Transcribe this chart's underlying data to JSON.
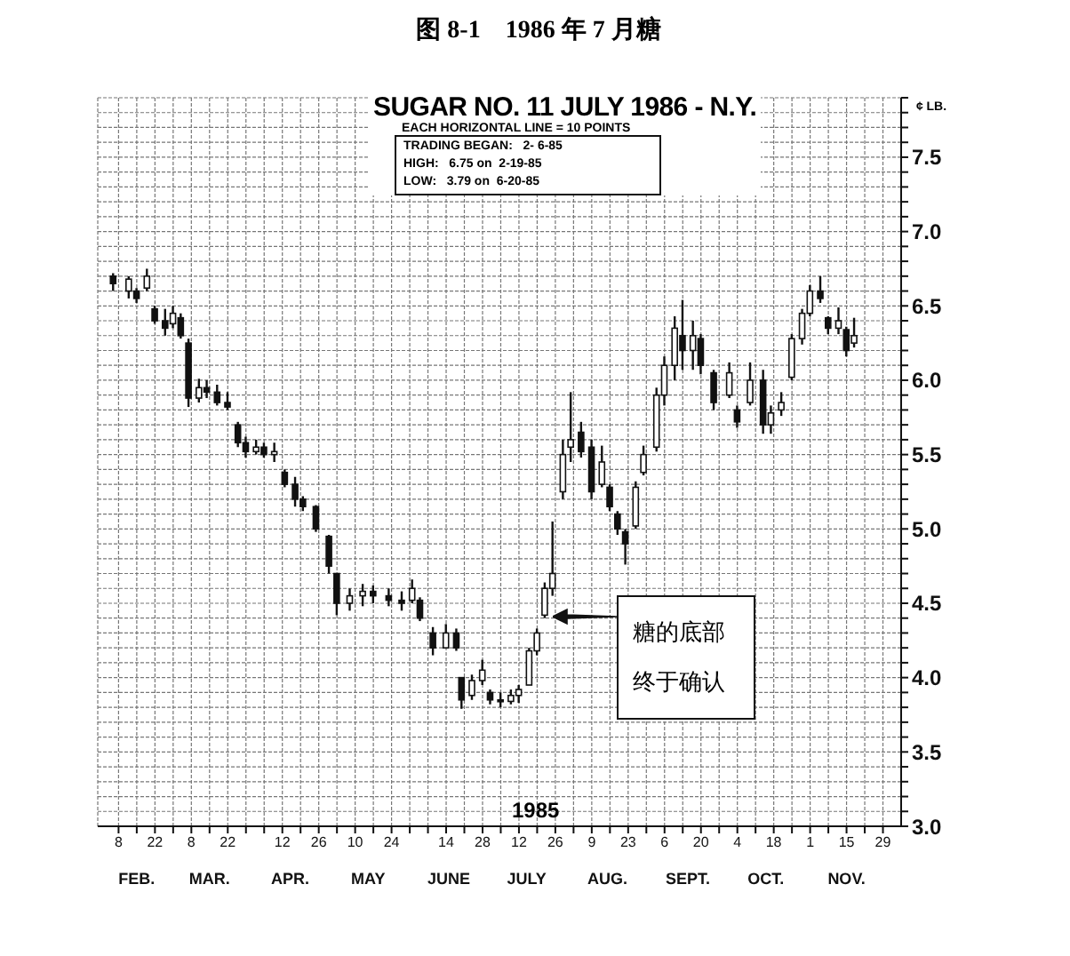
{
  "chart_data": {
    "type": "candlestick",
    "title": "图 8-1　1986 年 7 月糖",
    "subtitle": "SUGAR NO. 11 JULY 1986 - N.Y.",
    "ylabel": "¢ LB.",
    "annotations": [
      "EACH HORIZONTAL LINE = 10 POINTS",
      "TRADING BEGAN:   2- 6-85",
      "HIGH:   6.75 on  2-19-85",
      "LOW:   3.79 on  6-20-85",
      "1985",
      "糖的底部终于确认"
    ],
    "x": [
      "1985-02-06",
      "1985-02-12",
      "1985-02-15",
      "1985-02-19",
      "1985-02-22",
      "1985-02-26",
      "1985-03-01",
      "1985-03-04",
      "1985-03-07",
      "1985-03-11",
      "1985-03-14",
      "1985-03-18",
      "1985-03-22",
      "1985-03-26",
      "1985-03-29",
      "1985-04-02",
      "1985-04-05",
      "1985-04-09",
      "1985-04-13",
      "1985-04-17",
      "1985-04-20",
      "1985-04-25",
      "1985-04-30",
      "1985-05-03",
      "1985-05-08",
      "1985-05-13",
      "1985-05-17",
      "1985-05-23",
      "1985-05-28",
      "1985-06-01",
      "1985-06-04",
      "1985-06-09",
      "1985-06-14",
      "1985-06-18",
      "1985-06-20",
      "1985-06-24",
      "1985-06-28",
      "1985-07-01",
      "1985-07-05",
      "1985-07-09",
      "1985-07-12",
      "1985-07-16",
      "1985-07-19",
      "1985-07-22",
      "1985-07-25",
      "1985-07-29",
      "1985-08-01",
      "1985-08-05",
      "1985-08-09",
      "1985-08-13",
      "1985-08-16",
      "1985-08-19",
      "1985-08-22",
      "1985-08-26",
      "1985-08-29",
      "1985-09-03",
      "1985-09-06",
      "1985-09-10",
      "1985-09-13",
      "1985-09-17",
      "1985-09-20",
      "1985-09-25",
      "1985-10-01",
      "1985-10-04",
      "1985-10-09",
      "1985-10-14",
      "1985-10-17",
      "1985-10-21",
      "1985-10-25",
      "1985-10-29",
      "1985-11-01",
      "1985-11-05",
      "1985-11-08",
      "1985-11-12",
      "1985-11-15",
      "1985-11-18"
    ],
    "ohlc": [
      [
        6.7,
        6.72,
        6.6,
        6.65
      ],
      [
        6.6,
        6.7,
        6.55,
        6.68
      ],
      [
        6.6,
        6.62,
        6.52,
        6.55
      ],
      [
        6.62,
        6.75,
        6.6,
        6.7
      ],
      [
        6.48,
        6.5,
        6.38,
        6.4
      ],
      [
        6.4,
        6.48,
        6.3,
        6.35
      ],
      [
        6.38,
        6.5,
        6.35,
        6.45
      ],
      [
        6.42,
        6.45,
        6.28,
        6.3
      ],
      [
        6.25,
        6.28,
        5.82,
        5.88
      ],
      [
        5.88,
        6.01,
        5.85,
        5.95
      ],
      [
        5.95,
        6.0,
        5.88,
        5.92
      ],
      [
        5.92,
        5.97,
        5.83,
        5.85
      ],
      [
        5.85,
        5.92,
        5.8,
        5.82
      ],
      [
        5.7,
        5.72,
        5.55,
        5.58
      ],
      [
        5.58,
        5.62,
        5.48,
        5.52
      ],
      [
        5.52,
        5.6,
        5.5,
        5.55
      ],
      [
        5.55,
        5.58,
        5.48,
        5.5
      ],
      [
        5.5,
        5.58,
        5.45,
        5.52
      ],
      [
        5.38,
        5.4,
        5.28,
        5.3
      ],
      [
        5.3,
        5.35,
        5.15,
        5.2
      ],
      [
        5.2,
        5.22,
        5.12,
        5.15
      ],
      [
        5.15,
        5.16,
        4.98,
        5.0
      ],
      [
        4.95,
        4.96,
        4.7,
        4.75
      ],
      [
        4.7,
        4.7,
        4.42,
        4.5
      ],
      [
        4.5,
        4.6,
        4.45,
        4.55
      ],
      [
        4.55,
        4.63,
        4.48,
        4.58
      ],
      [
        4.58,
        4.62,
        4.5,
        4.55
      ],
      [
        4.55,
        4.6,
        4.48,
        4.52
      ],
      [
        4.52,
        4.58,
        4.45,
        4.5
      ],
      [
        4.52,
        4.66,
        4.5,
        4.6
      ],
      [
        4.52,
        4.54,
        4.38,
        4.4
      ],
      [
        4.3,
        4.34,
        4.15,
        4.2
      ],
      [
        4.2,
        4.36,
        4.2,
        4.3
      ],
      [
        4.3,
        4.33,
        4.18,
        4.2
      ],
      [
        4.0,
        4.0,
        3.79,
        3.85
      ],
      [
        3.88,
        4.02,
        3.85,
        3.98
      ],
      [
        3.98,
        4.12,
        3.95,
        4.05
      ],
      [
        3.9,
        3.92,
        3.82,
        3.85
      ],
      [
        3.85,
        3.9,
        3.8,
        3.84
      ],
      [
        3.84,
        3.92,
        3.82,
        3.88
      ],
      [
        3.88,
        3.95,
        3.83,
        3.92
      ],
      [
        3.95,
        4.2,
        3.95,
        4.18
      ],
      [
        4.18,
        4.33,
        4.15,
        4.3
      ],
      [
        4.42,
        4.64,
        4.4,
        4.6
      ],
      [
        4.6,
        5.05,
        4.55,
        4.7
      ],
      [
        5.25,
        5.6,
        5.2,
        5.5
      ],
      [
        5.55,
        5.92,
        5.45,
        5.6
      ],
      [
        5.65,
        5.72,
        5.48,
        5.52
      ],
      [
        5.55,
        5.6,
        5.2,
        5.25
      ],
      [
        5.3,
        5.56,
        5.28,
        5.45
      ],
      [
        5.28,
        5.3,
        5.12,
        5.15
      ],
      [
        5.1,
        5.12,
        4.96,
        5.0
      ],
      [
        4.98,
        5.0,
        4.76,
        4.9
      ],
      [
        5.02,
        5.32,
        5.0,
        5.28
      ],
      [
        5.38,
        5.56,
        5.36,
        5.5
      ],
      [
        5.55,
        5.95,
        5.52,
        5.9
      ],
      [
        5.9,
        6.16,
        5.83,
        6.1
      ],
      [
        6.1,
        6.43,
        6.0,
        6.35
      ],
      [
        6.3,
        6.54,
        6.07,
        6.2
      ],
      [
        6.2,
        6.4,
        6.07,
        6.3
      ],
      [
        6.28,
        6.31,
        6.04,
        6.1
      ],
      [
        6.05,
        6.07,
        5.8,
        5.85
      ],
      [
        5.9,
        6.12,
        5.88,
        6.05
      ],
      [
        5.8,
        5.83,
        5.68,
        5.72
      ],
      [
        5.85,
        6.12,
        5.83,
        6.0
      ],
      [
        6.0,
        6.07,
        5.64,
        5.7
      ],
      [
        5.7,
        5.83,
        5.64,
        5.78
      ],
      [
        5.8,
        5.92,
        5.76,
        5.85
      ],
      [
        6.02,
        6.31,
        6.0,
        6.28
      ],
      [
        6.28,
        6.48,
        6.24,
        6.45
      ],
      [
        6.45,
        6.64,
        6.43,
        6.6
      ],
      [
        6.6,
        6.7,
        6.52,
        6.55
      ],
      [
        6.42,
        6.43,
        6.31,
        6.35
      ],
      [
        6.35,
        6.49,
        6.31,
        6.4
      ],
      [
        6.34,
        6.36,
        6.16,
        6.2
      ],
      [
        6.25,
        6.42,
        6.22,
        6.3
      ]
    ],
    "color": "#111111",
    "xlim": [
      "1985-01-31",
      "1985-12-06"
    ],
    "xticks": [
      {
        "value": "1985-02-08",
        "label": "8"
      },
      {
        "value": "1985-02-15",
        "label": null
      },
      {
        "value": "1985-02-22",
        "label": "22"
      },
      {
        "value": "1985-03-01",
        "label": null
      },
      {
        "value": "1985-03-08",
        "label": "8"
      },
      {
        "value": "1985-03-15",
        "label": null
      },
      {
        "value": "1985-03-22",
        "label": "22"
      },
      {
        "value": "1985-03-29",
        "label": null
      },
      {
        "value": "1985-04-05",
        "label": null
      },
      {
        "value": "1985-04-12",
        "label": "12"
      },
      {
        "value": "1985-04-19",
        "label": null
      },
      {
        "value": "1985-04-26",
        "label": "26"
      },
      {
        "value": "1985-05-03",
        "label": null
      },
      {
        "value": "1985-05-10",
        "label": "10"
      },
      {
        "value": "1985-05-17",
        "label": null
      },
      {
        "value": "1985-05-24",
        "label": "24"
      },
      {
        "value": "1985-05-31",
        "label": null
      },
      {
        "value": "1985-06-07",
        "label": null
      },
      {
        "value": "1985-06-14",
        "label": "14"
      },
      {
        "value": "1985-06-21",
        "label": null
      },
      {
        "value": "1985-06-28",
        "label": "28"
      },
      {
        "value": "1985-07-05",
        "label": null
      },
      {
        "value": "1985-07-12",
        "label": "12"
      },
      {
        "value": "1985-07-19",
        "label": null
      },
      {
        "value": "1985-07-26",
        "label": "26"
      },
      {
        "value": "1985-08-02",
        "label": null
      },
      {
        "value": "1985-08-09",
        "label": "9"
      },
      {
        "value": "1985-08-16",
        "label": null
      },
      {
        "value": "1985-08-23",
        "label": "23"
      },
      {
        "value": "1985-08-30",
        "label": null
      },
      {
        "value": "1985-09-06",
        "label": "6"
      },
      {
        "value": "1985-09-13",
        "label": null
      },
      {
        "value": "1985-09-20",
        "label": "20"
      },
      {
        "value": "1985-09-27",
        "label": null
      },
      {
        "value": "1985-10-04",
        "label": "4"
      },
      {
        "value": "1985-10-11",
        "label": null
      },
      {
        "value": "1985-10-18",
        "label": "18"
      },
      {
        "value": "1985-10-25",
        "label": null
      },
      {
        "value": "1985-11-01",
        "label": "1"
      },
      {
        "value": "1985-11-08",
        "label": null
      },
      {
        "value": "1985-11-15",
        "label": "15"
      },
      {
        "value": "1985-11-22",
        "label": null
      },
      {
        "value": "1985-11-29",
        "label": "29"
      }
    ],
    "x2lim": [
      "1985-01-31",
      "1985-12-06"
    ],
    "x2ticks": [
      {
        "value": "1985-02-15",
        "label": "FEB."
      },
      {
        "value": "1985-03-15",
        "label": "MAR."
      },
      {
        "value": "1985-04-15",
        "label": "APR."
      },
      {
        "value": "1985-05-15",
        "label": "MAY"
      },
      {
        "value": "1985-06-15",
        "label": "JUNE"
      },
      {
        "value": "1985-07-15",
        "label": "JULY"
      },
      {
        "value": "1985-08-15",
        "label": "AUG."
      },
      {
        "value": "1985-09-15",
        "label": "SEPT."
      },
      {
        "value": "1985-10-15",
        "label": "OCT."
      },
      {
        "value": "1985-11-15",
        "label": "NOV."
      }
    ],
    "ylim": [
      3.0,
      7.9
    ],
    "yticks": [
      {
        "value": 3,
        "label": "3.0"
      },
      {
        "value": 3.1,
        "label": null
      },
      {
        "value": 3.2,
        "label": null
      },
      {
        "value": 3.3,
        "label": null
      },
      {
        "value": 3.4,
        "label": null
      },
      3.5,
      {
        "value": 3.6,
        "label": null
      },
      {
        "value": 3.7,
        "label": null
      },
      {
        "value": 3.8,
        "label": null
      },
      {
        "value": 3.9,
        "label": null
      },
      {
        "value": 4,
        "label": "4.0"
      },
      {
        "value": 4.1,
        "label": null
      },
      {
        "value": 4.2,
        "label": null
      },
      {
        "value": 4.3,
        "label": null
      },
      {
        "value": 4.4,
        "label": null
      },
      4.5,
      {
        "value": 4.6,
        "label": null
      },
      {
        "value": 4.7,
        "label": null
      },
      {
        "value": 4.8,
        "label": null
      },
      {
        "value": 4.9,
        "label": null
      },
      {
        "value": 5,
        "label": "5.0"
      },
      {
        "value": 5.1,
        "label": null
      },
      {
        "value": 5.2,
        "label": null
      },
      {
        "value": 5.3,
        "label": null
      },
      {
        "value": 5.4,
        "label": null
      },
      5.5,
      {
        "value": 5.6,
        "label": null
      },
      {
        "value": 5.7,
        "label": null
      },
      {
        "value": 5.8,
        "label": null
      },
      {
        "value": 5.9,
        "label": null
      },
      {
        "value": 6,
        "label": "6.0"
      },
      {
        "value": 6.1,
        "label": null
      },
      {
        "value": 6.2,
        "label": null
      },
      {
        "value": 6.3,
        "label": null
      },
      {
        "value": 6.4,
        "label": null
      },
      6.5,
      {
        "value": 6.6,
        "label": null
      },
      {
        "value": 6.7,
        "label": null
      },
      {
        "value": 6.8,
        "label": null
      },
      {
        "value": 6.9,
        "label": null
      },
      {
        "value": 7,
        "label": "7.0"
      },
      {
        "value": 7.1,
        "label": null
      },
      {
        "value": 7.2,
        "label": null
      },
      {
        "value": 7.3,
        "label": null
      },
      {
        "value": 7.4,
        "label": null
      },
      7.5,
      {
        "value": 7.6,
        "label": null
      },
      {
        "value": 7.7,
        "label": null
      },
      {
        "value": 7.8,
        "label": null
      },
      {
        "value": 7.9,
        "label": null
      }
    ],
    "grid": true
  }
}
